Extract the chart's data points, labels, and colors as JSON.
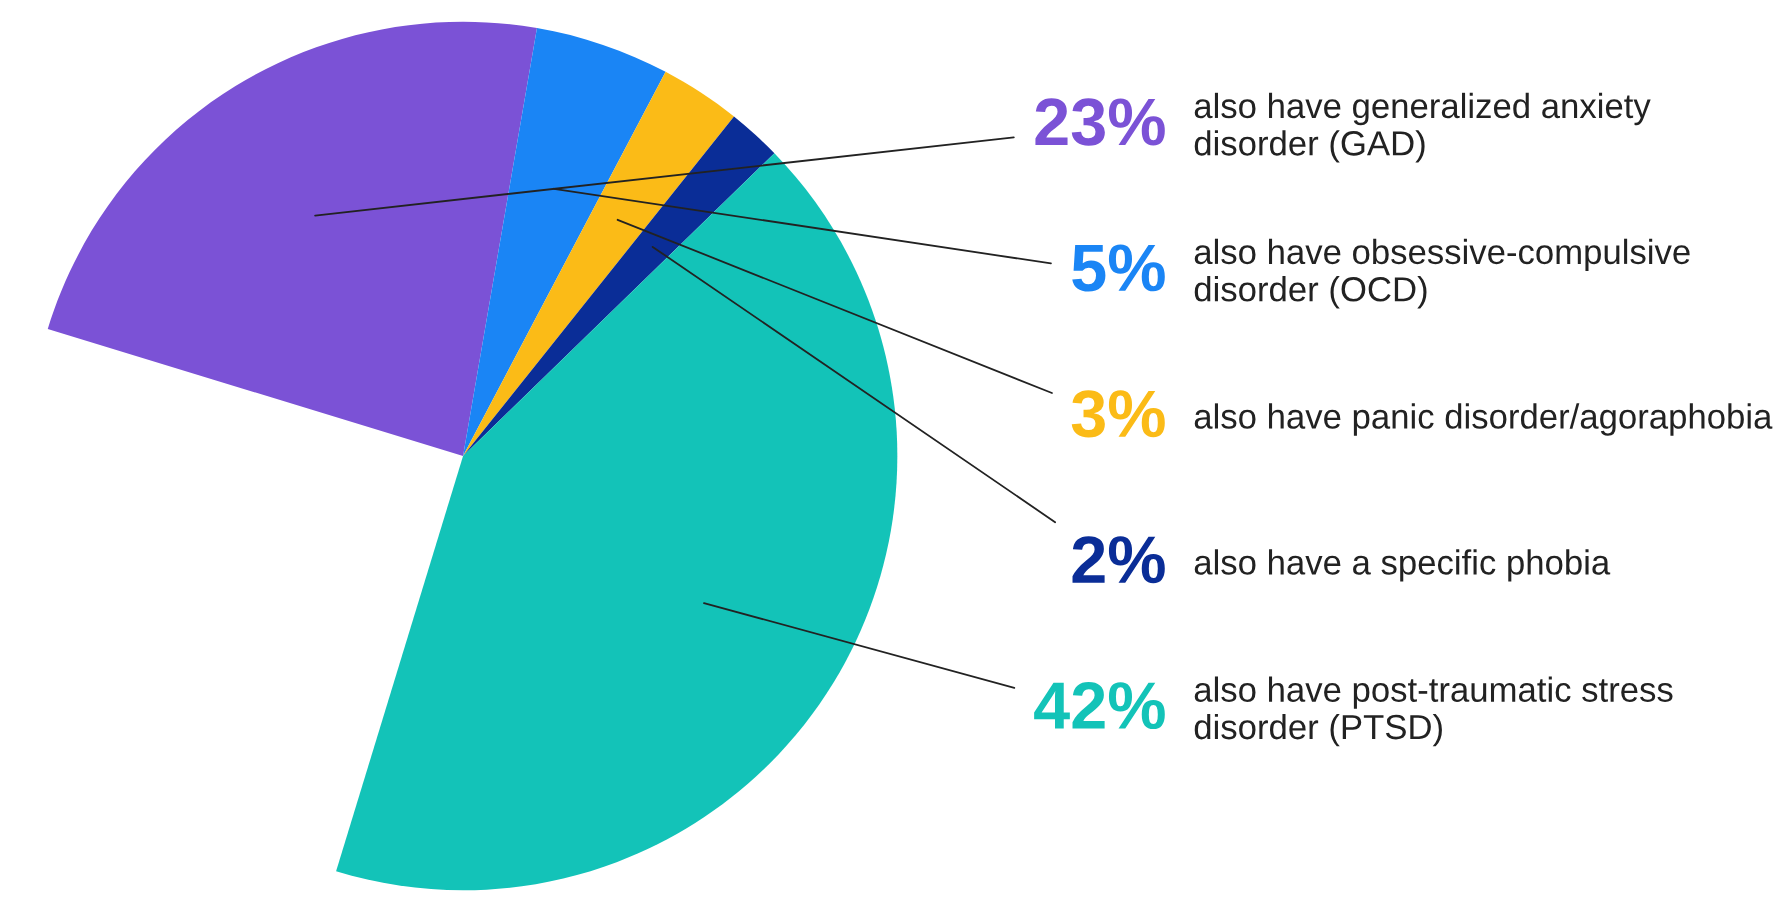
{
  "chart_data": {
    "type": "pie",
    "categories": [
      "also have generalized anxiety disorder (GAD)",
      "also have obsessive-compulsive disorder (OCD)",
      "also have panic disorder/agoraphobia",
      "also have a specific phobia",
      "also have post-traumatic stress disorder (PTSD)"
    ],
    "values": [
      23,
      5,
      3,
      2,
      42
    ],
    "value_labels": [
      "23%",
      "5%",
      "3%",
      "2%",
      "42%"
    ],
    "colors": [
      "#7b52d6",
      "#1a85f5",
      "#fbbb17",
      "#0a2d97",
      "#13c3b8"
    ]
  }
}
